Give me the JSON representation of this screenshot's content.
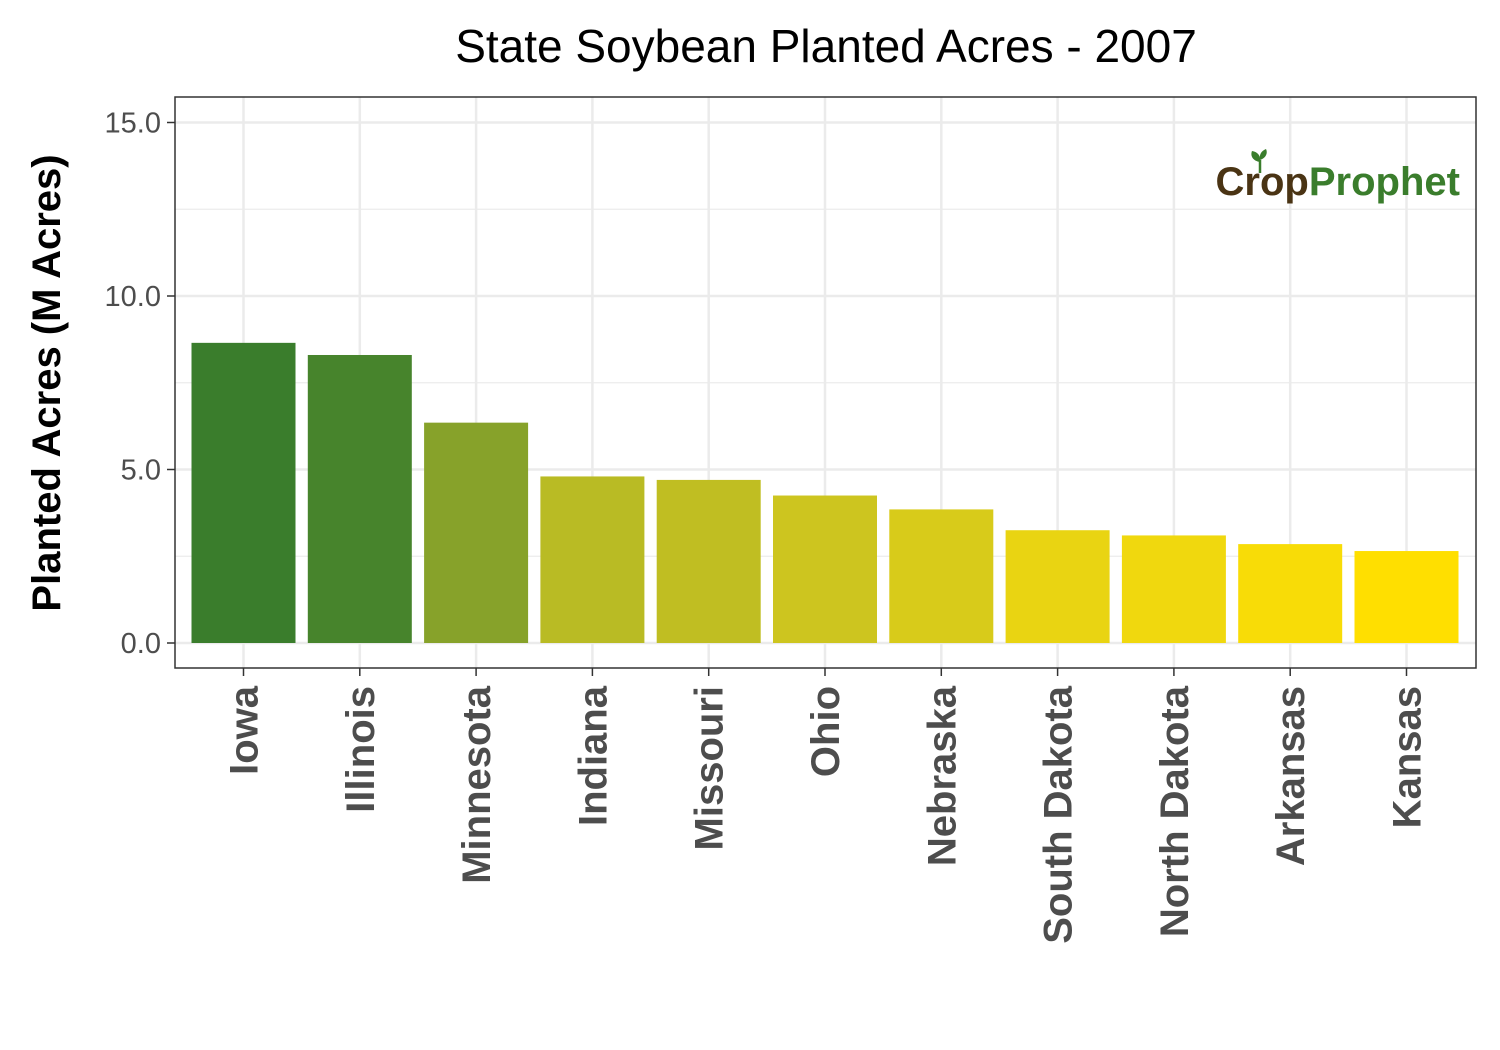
{
  "chart_data": {
    "type": "bar",
    "title": "State Soybean Planted Acres - 2007",
    "xlabel": "",
    "ylabel": "Planted Acres (M Acres)",
    "ylim": [
      0,
      15.75
    ],
    "yticks": [
      "0.0",
      "5.0",
      "10.0",
      "15.0"
    ],
    "grid": true,
    "categories": [
      "Iowa",
      "Illinois",
      "Minnesota",
      "Indiana",
      "Missouri",
      "Ohio",
      "Nebraska",
      "South Dakota",
      "North Dakota",
      "Arkansas",
      "Kansas"
    ],
    "values": [
      8.65,
      8.3,
      6.35,
      4.8,
      4.7,
      4.25,
      3.85,
      3.25,
      3.1,
      2.85,
      2.65
    ],
    "bar_colors": [
      "#3a7d2c",
      "#47842c",
      "#87a22a",
      "#b9bb24",
      "#c0be22",
      "#cdc51f",
      "#d8cb1a",
      "#e9d412",
      "#f0d80e",
      "#f8dc07",
      "#ffdf00"
    ]
  },
  "watermark": {
    "part1": "Crop",
    "part2": "Prophet",
    "colors": {
      "crop": "#4a3414",
      "prophet": "#3a7d2c"
    }
  }
}
